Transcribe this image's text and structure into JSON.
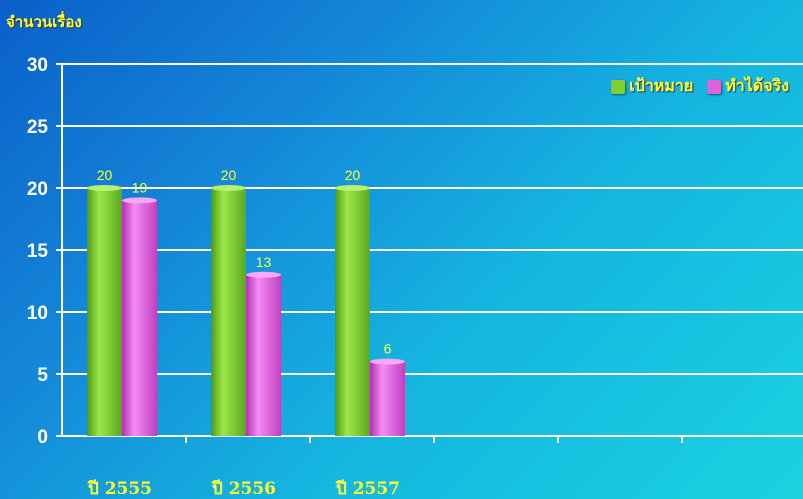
{
  "chart_data": {
    "type": "bar",
    "ylabel": "จำนวนเรื่อง",
    "xlabel": "",
    "title": "",
    "categories": [
      "ปี 2555",
      "ปี 2556",
      "ปี 2557"
    ],
    "series": [
      {
        "name": "เป้าหมาย",
        "values": [
          20,
          20,
          20
        ],
        "color": "#7fcf2e"
      },
      {
        "name": "ทำได้จริง",
        "values": [
          19,
          13,
          6
        ],
        "color": "#e060e0"
      }
    ],
    "ylim": [
      0,
      30
    ],
    "yticks": [
      0,
      5,
      10,
      15,
      20,
      25,
      30
    ],
    "grid": true,
    "legend_position": "top-right",
    "colors": {
      "text": "#ffff33",
      "axis": "#ffffff",
      "grid": "#ffffff"
    }
  }
}
